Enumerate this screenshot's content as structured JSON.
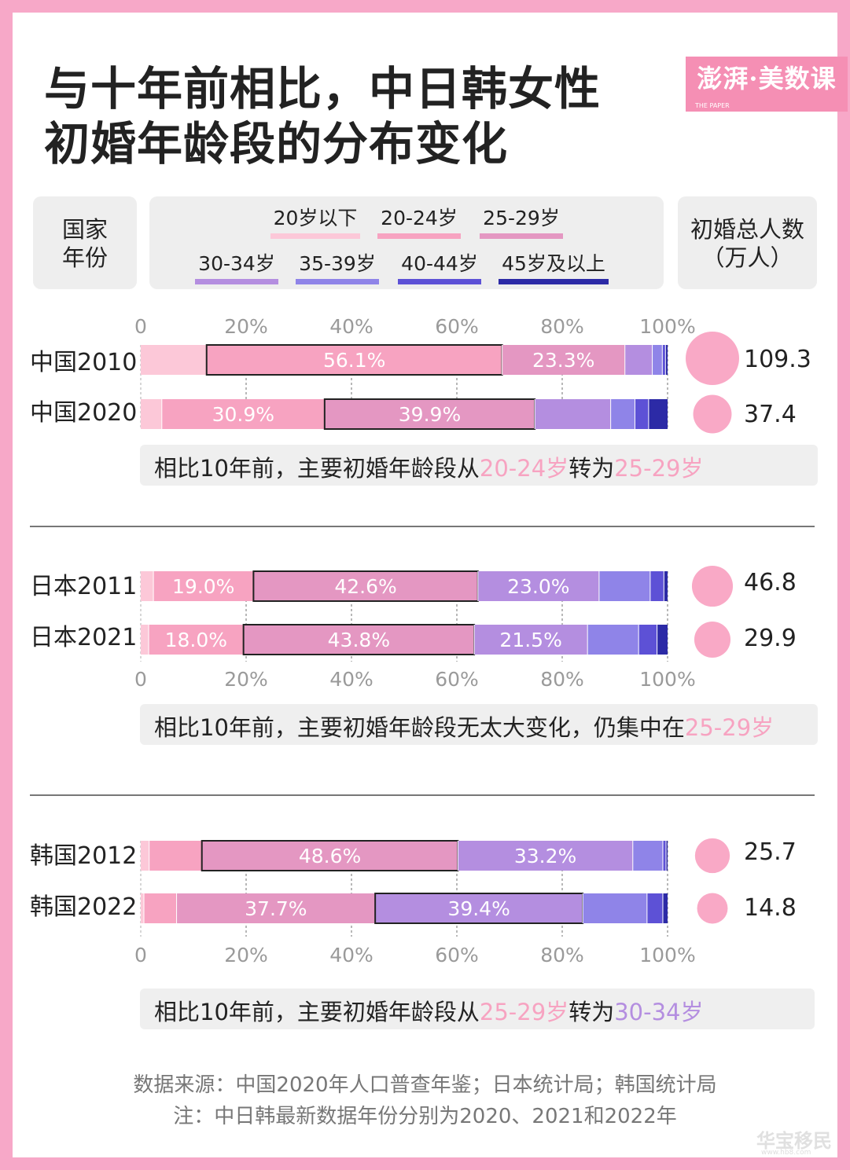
{
  "title_line1": "与十年前相比，中日韩女性",
  "title_line2": "初婚年龄段的分布变化",
  "brand": "澎湃·美数课",
  "brand_sub": "THE PAPER",
  "header": {
    "country_line1": "国家",
    "country_line2": "年份",
    "total_line1": "初婚总人数",
    "total_line2": "（万人）"
  },
  "legend": [
    {
      "label": "20岁以下",
      "color": "#fcc8d8"
    },
    {
      "label": "20-24岁",
      "color": "#f7a3c1"
    },
    {
      "label": "25-29岁",
      "color": "#e497c2"
    },
    {
      "label": "30-34岁",
      "color": "#b48ee0"
    },
    {
      "label": "35-39岁",
      "color": "#8f84e8"
    },
    {
      "label": "40-44岁",
      "color": "#5d51d6"
    },
    {
      "label": "45岁及以上",
      "color": "#2c2aa6"
    }
  ],
  "axis_ticks": [
    "0",
    "20%",
    "40%",
    "60%",
    "80%",
    "100%"
  ],
  "chart_data": {
    "type": "bar",
    "orientation": "horizontal-stacked-100",
    "xlim": [
      0,
      100
    ],
    "legend_placement": "top",
    "categories": [
      "20岁以下",
      "20-24岁",
      "25-29岁",
      "30-34岁",
      "35-39岁",
      "40-44岁",
      "45岁及以上"
    ],
    "groups": [
      {
        "rows": [
          {
            "label": "中国2010",
            "values": [
              12.5,
              56.1,
              23.3,
              5.2,
              1.9,
              0.6,
              0.4
            ],
            "shown": [
              null,
              "56.1%",
              "23.3%",
              null,
              null,
              null,
              null
            ],
            "highlight": 1,
            "total": 109.3,
            "total_label": "109.3"
          },
          {
            "label": "中国2020",
            "values": [
              4.0,
              30.9,
              39.9,
              14.4,
              4.6,
              2.6,
              3.6
            ],
            "shown": [
              null,
              "30.9%",
              "39.9%",
              null,
              null,
              null,
              null
            ],
            "highlight": 2,
            "total": 37.4,
            "total_label": "37.4"
          }
        ],
        "axis_position": "top",
        "note_prefix": "相比10年前，主要初婚年龄段从",
        "note_hl1": "20-24岁",
        "note_mid": "转为",
        "note_hl2": "25-29岁"
      },
      {
        "rows": [
          {
            "label": "日本2011",
            "values": [
              2.4,
              19.0,
              42.6,
              23.0,
              9.7,
              2.6,
              0.7
            ],
            "shown": [
              null,
              "19.0%",
              "42.6%",
              "23.0%",
              null,
              null,
              null
            ],
            "highlight": 2,
            "total": 46.8,
            "total_label": "46.8"
          },
          {
            "label": "日本2021",
            "values": [
              1.5,
              18.0,
              43.8,
              21.5,
              9.7,
              3.5,
              2.0
            ],
            "shown": [
              null,
              "18.0%",
              "43.8%",
              "21.5%",
              null,
              null,
              null
            ],
            "highlight": 2,
            "total": 29.9,
            "total_label": "29.9"
          }
        ],
        "axis_position": "bottom",
        "note_prefix": "相比10年前，主要初婚年龄段无太大变化，仍集中在",
        "note_hl1": "25-29岁",
        "note_mid": "",
        "note_hl2": ""
      },
      {
        "rows": [
          {
            "label": "韩国2012",
            "values": [
              1.6,
              10.0,
              48.6,
              33.2,
              5.7,
              0.6,
              0.3
            ],
            "shown": [
              null,
              null,
              "48.6%",
              "33.2%",
              null,
              null,
              null
            ],
            "highlight": 2,
            "total": 25.7,
            "total_label": "25.7"
          },
          {
            "label": "韩国2022",
            "values": [
              0.6,
              6.2,
              37.7,
              39.4,
              12.2,
              3.0,
              0.9
            ],
            "shown": [
              null,
              null,
              "37.7%",
              "39.4%",
              null,
              null,
              null
            ],
            "highlight": 3,
            "total": 14.8,
            "total_label": "14.8"
          }
        ],
        "axis_position": "bottom",
        "note_prefix": "相比10年前，主要初婚年龄段从",
        "note_hl1": "25-29岁",
        "note_mid": "转为",
        "note_hl2": "30-34岁"
      }
    ]
  },
  "footer_source": "数据来源：中国2020年人口普查年鉴；日本统计局；韩国统计局",
  "footer_note": "注：中日韩最新数据年份分别为2020、2021和2022年",
  "watermark": "华宝移民",
  "watermark_sub": "www.hb8.com"
}
